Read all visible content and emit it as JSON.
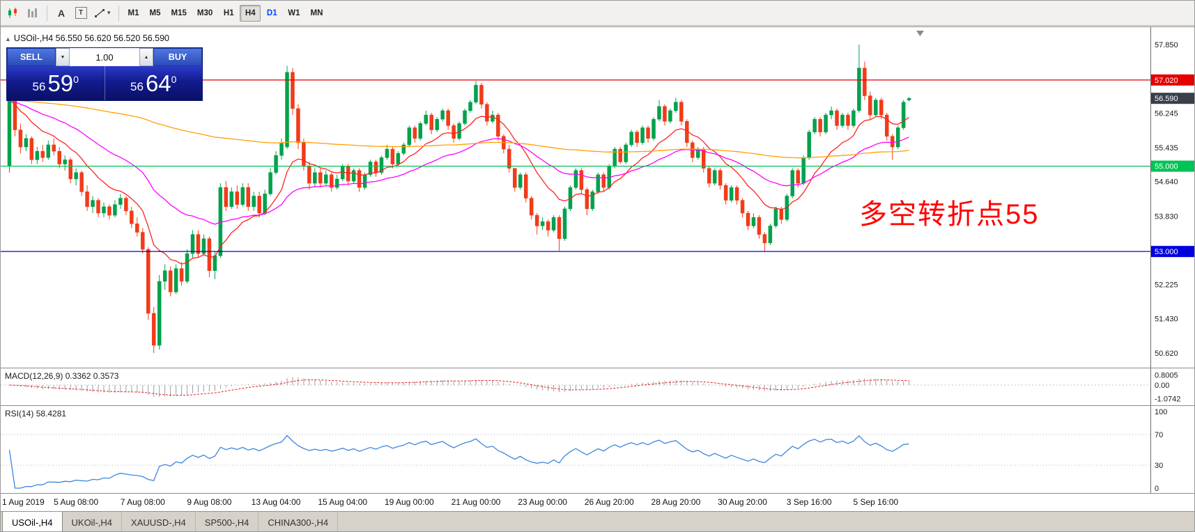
{
  "toolbar": {
    "a_icon_label": "A",
    "t_icon_label": "T",
    "timeframes": [
      "M1",
      "M5",
      "M15",
      "M30",
      "H1",
      "H4",
      "D1",
      "W1",
      "MN"
    ],
    "active_timeframe": "H4",
    "highlight_timeframe": "D1"
  },
  "chart": {
    "collapse_arrow": "▲",
    "symbol_header": "USOil-,H4  56.550 56.620 56.520 56.590",
    "annotation": {
      "text": "多空转折点55",
      "color": "#ff0000"
    },
    "one_click": {
      "sell_label": "SELL",
      "buy_label": "BUY",
      "volume": "1.00",
      "sell_small": "56",
      "sell_big": "59",
      "sell_sup": "0",
      "buy_small": "56",
      "buy_big": "64",
      "buy_sup": "0"
    }
  },
  "indicators": {
    "macd_label": "MACD(12,26,9)",
    "macd_value_main": "0.3362",
    "macd_value_signal": "0.3573",
    "rsi_label": "RSI(14)",
    "rsi_value": "58.4281"
  },
  "tabs": [
    {
      "label": "USOil-,H4",
      "active": true
    },
    {
      "label": "UKOil-,H4"
    },
    {
      "label": "XAUUSD-,H4"
    },
    {
      "label": "SP500-,H4"
    },
    {
      "label": "CHINA300-,H4"
    }
  ],
  "chart_data": {
    "type": "candlestick",
    "symbol": "USOil-,H4",
    "ohlc_readout": {
      "open": "56.550",
      "high": "56.620",
      "low": "56.520",
      "close": "56.590"
    },
    "style": {
      "bull": "#00a24c",
      "bear": "#f23b19",
      "macd_hist": "#9aa0a6",
      "macd_signal": "#e02020",
      "rsi_line": "#3d85e0"
    },
    "y_axis": {
      "labels": [
        {
          "value": 57.85,
          "label": "57.850"
        },
        {
          "value": 56.245,
          "label": "56.245"
        },
        {
          "value": 55.435,
          "label": "55.435"
        },
        {
          "value": 54.64,
          "label": "54.640"
        },
        {
          "value": 53.83,
          "label": "53.830"
        },
        {
          "value": 52.225,
          "label": "52.225"
        },
        {
          "value": 51.43,
          "label": "51.430"
        },
        {
          "value": 50.62,
          "label": "50.620"
        }
      ]
    },
    "levels": [
      {
        "value": 57.02,
        "label": "57.020",
        "color": "#e60000"
      },
      {
        "value": 55.0,
        "label": "55.000",
        "color": "#00c455"
      },
      {
        "value": 53.0,
        "label": "53.000",
        "color": "#0000dd"
      }
    ],
    "current_price": {
      "value": 56.59,
      "label": "56.590",
      "color": "#38404a"
    },
    "moving_averages": [
      {
        "period": 12,
        "color": "#ff2222"
      },
      {
        "period": 34,
        "color": "#ff00ff"
      },
      {
        "period": 200,
        "color": "#ffa000"
      }
    ],
    "macd": {
      "params": [
        12,
        26,
        9
      ],
      "axis_labels": [
        {
          "text": "0.8005",
          "value": 0.8005
        },
        {
          "text": "0.00",
          "value": 0
        },
        {
          "text": "-1.0742",
          "value": -1.0742
        }
      ]
    },
    "rsi": {
      "period": 14,
      "levels": [
        70,
        30
      ],
      "axis_labels": [
        {
          "text": "100",
          "value": 100
        },
        {
          "text": "70",
          "value": 70
        },
        {
          "text": "30",
          "value": 30
        },
        {
          "text": "0",
          "value": 0
        }
      ]
    },
    "x_axis": {
      "labels": [
        {
          "text": "1 Aug 2019",
          "index": 0
        },
        {
          "text": "5 Aug 08:00",
          "index": 12
        },
        {
          "text": "7 Aug 08:00",
          "index": 24
        },
        {
          "text": "9 Aug 08:00",
          "index": 36
        },
        {
          "text": "13 Aug 04:00",
          "index": 48
        },
        {
          "text": "15 Aug 04:00",
          "index": 60
        },
        {
          "text": "19 Aug 00:00",
          "index": 72
        },
        {
          "text": "21 Aug 00:00",
          "index": 84
        },
        {
          "text": "23 Aug 00:00",
          "index": 96
        },
        {
          "text": "26 Aug 20:00",
          "index": 108
        },
        {
          "text": "28 Aug 20:00",
          "index": 120
        },
        {
          "text": "30 Aug 20:00",
          "index": 132
        },
        {
          "text": "3 Sep 16:00",
          "index": 144
        },
        {
          "text": "5 Sep 16:00",
          "index": 156
        }
      ]
    },
    "candles": [
      [
        55.0,
        56.65,
        54.85,
        56.55
      ],
      [
        56.55,
        56.6,
        55.7,
        55.85
      ],
      [
        55.85,
        56.0,
        55.3,
        55.45
      ],
      [
        55.45,
        55.75,
        55.35,
        55.65
      ],
      [
        55.65,
        55.7,
        55.05,
        55.15
      ],
      [
        55.15,
        55.45,
        55.05,
        55.35
      ],
      [
        55.35,
        55.5,
        55.1,
        55.2
      ],
      [
        55.2,
        55.6,
        55.15,
        55.5
      ],
      [
        55.5,
        55.65,
        55.25,
        55.35
      ],
      [
        55.35,
        55.45,
        54.95,
        55.05
      ],
      [
        55.05,
        55.25,
        54.9,
        55.15
      ],
      [
        55.15,
        55.2,
        54.6,
        54.7
      ],
      [
        54.7,
        54.95,
        54.55,
        54.85
      ],
      [
        54.85,
        54.9,
        54.3,
        54.4
      ],
      [
        54.4,
        54.55,
        53.95,
        54.05
      ],
      [
        54.05,
        54.3,
        53.9,
        54.2
      ],
      [
        54.2,
        54.25,
        53.8,
        53.9
      ],
      [
        53.9,
        54.15,
        53.8,
        54.05
      ],
      [
        54.05,
        54.1,
        53.75,
        53.85
      ],
      [
        53.85,
        54.2,
        53.8,
        54.1
      ],
      [
        54.1,
        54.35,
        54.0,
        54.25
      ],
      [
        54.25,
        54.3,
        53.85,
        53.95
      ],
      [
        53.95,
        54.05,
        53.55,
        53.65
      ],
      [
        53.65,
        53.8,
        53.35,
        53.45
      ],
      [
        53.45,
        53.55,
        52.95,
        53.05
      ],
      [
        53.05,
        53.1,
        51.4,
        51.55
      ],
      [
        51.55,
        51.7,
        50.62,
        50.8
      ],
      [
        50.8,
        52.45,
        50.7,
        52.3
      ],
      [
        52.3,
        52.7,
        52.1,
        52.55
      ],
      [
        52.55,
        52.65,
        51.95,
        52.05
      ],
      [
        52.05,
        52.7,
        52.0,
        52.6
      ],
      [
        52.6,
        52.75,
        52.2,
        52.3
      ],
      [
        52.3,
        53.05,
        52.25,
        52.95
      ],
      [
        52.95,
        53.5,
        52.85,
        53.4
      ],
      [
        53.4,
        53.5,
        52.85,
        52.95
      ],
      [
        52.95,
        53.4,
        52.9,
        53.3
      ],
      [
        53.3,
        53.35,
        52.4,
        52.55
      ],
      [
        52.55,
        53.0,
        52.35,
        52.9
      ],
      [
        52.9,
        54.6,
        52.85,
        54.5
      ],
      [
        54.5,
        54.65,
        53.95,
        54.05
      ],
      [
        54.05,
        54.5,
        54.0,
        54.4
      ],
      [
        54.4,
        54.55,
        54.0,
        54.1
      ],
      [
        54.1,
        54.6,
        54.05,
        54.5
      ],
      [
        54.5,
        54.6,
        53.95,
        54.05
      ],
      [
        54.05,
        54.4,
        53.95,
        54.3
      ],
      [
        54.3,
        54.4,
        53.8,
        53.9
      ],
      [
        53.9,
        54.45,
        53.85,
        54.35
      ],
      [
        54.35,
        54.95,
        54.3,
        54.85
      ],
      [
        54.85,
        55.35,
        54.8,
        55.25
      ],
      [
        55.25,
        55.65,
        55.15,
        55.55
      ],
      [
        55.45,
        57.35,
        55.4,
        57.2
      ],
      [
        57.2,
        57.3,
        56.2,
        56.35
      ],
      [
        56.35,
        56.45,
        55.4,
        55.55
      ],
      [
        55.55,
        55.65,
        54.9,
        55.0
      ],
      [
        55.0,
        55.1,
        54.45,
        54.6
      ],
      [
        54.6,
        54.95,
        54.5,
        54.85
      ],
      [
        54.85,
        54.95,
        54.5,
        54.6
      ],
      [
        54.6,
        54.9,
        54.55,
        54.8
      ],
      [
        54.8,
        54.85,
        54.4,
        54.5
      ],
      [
        54.5,
        54.8,
        54.45,
        54.7
      ],
      [
        54.7,
        55.05,
        54.65,
        55.0
      ],
      [
        55.0,
        55.05,
        54.55,
        54.65
      ],
      [
        54.65,
        54.95,
        54.6,
        54.9
      ],
      [
        54.9,
        54.95,
        54.4,
        54.5
      ],
      [
        54.5,
        54.85,
        54.45,
        54.8
      ],
      [
        54.8,
        55.15,
        54.75,
        55.1
      ],
      [
        55.1,
        55.15,
        54.75,
        54.85
      ],
      [
        54.85,
        55.25,
        54.8,
        55.2
      ],
      [
        55.2,
        55.5,
        55.15,
        55.4
      ],
      [
        55.4,
        55.45,
        54.95,
        55.05
      ],
      [
        55.05,
        55.35,
        55.0,
        55.3
      ],
      [
        55.3,
        55.55,
        55.25,
        55.5
      ],
      [
        55.5,
        55.95,
        55.45,
        55.9
      ],
      [
        55.9,
        55.95,
        55.55,
        55.65
      ],
      [
        55.65,
        56.05,
        55.6,
        56.0
      ],
      [
        56.0,
        56.3,
        55.95,
        56.2
      ],
      [
        56.2,
        56.25,
        55.75,
        55.85
      ],
      [
        55.85,
        56.15,
        55.8,
        56.1
      ],
      [
        56.1,
        56.35,
        56.05,
        56.3
      ],
      [
        56.3,
        56.35,
        55.85,
        55.95
      ],
      [
        55.95,
        56.0,
        55.55,
        55.65
      ],
      [
        55.65,
        56.05,
        55.6,
        56.0
      ],
      [
        56.0,
        56.35,
        55.95,
        56.3
      ],
      [
        56.3,
        56.55,
        56.25,
        56.5
      ],
      [
        56.5,
        57.0,
        56.45,
        56.9
      ],
      [
        56.9,
        56.95,
        56.35,
        56.45
      ],
      [
        56.45,
        56.5,
        55.95,
        56.05
      ],
      [
        56.05,
        56.3,
        56.0,
        56.2
      ],
      [
        56.2,
        56.25,
        55.6,
        55.7
      ],
      [
        55.7,
        55.75,
        55.3,
        55.4
      ],
      [
        55.4,
        55.5,
        54.85,
        54.95
      ],
      [
        54.95,
        54.95,
        54.4,
        54.5
      ],
      [
        54.5,
        54.85,
        54.45,
        54.8
      ],
      [
        54.8,
        54.85,
        54.15,
        54.25
      ],
      [
        54.25,
        54.3,
        53.75,
        53.85
      ],
      [
        53.85,
        53.9,
        53.4,
        53.6
      ],
      [
        53.6,
        53.8,
        53.5,
        53.7
      ],
      [
        53.7,
        53.75,
        53.35,
        53.5
      ],
      [
        53.5,
        53.85,
        53.45,
        53.8
      ],
      [
        53.8,
        53.85,
        53.02,
        53.3
      ],
      [
        53.3,
        54.05,
        53.25,
        54.0
      ],
      [
        54.0,
        54.55,
        53.95,
        54.5
      ],
      [
        54.5,
        54.95,
        54.45,
        54.9
      ],
      [
        54.9,
        54.95,
        54.35,
        54.45
      ],
      [
        54.45,
        54.5,
        53.85,
        54.0
      ],
      [
        54.0,
        54.45,
        53.95,
        54.4
      ],
      [
        54.4,
        54.85,
        54.35,
        54.8
      ],
      [
        54.8,
        54.85,
        54.4,
        54.5
      ],
      [
        54.5,
        55.05,
        54.45,
        55.0
      ],
      [
        55.0,
        55.45,
        54.95,
        55.4
      ],
      [
        55.4,
        55.45,
        55.05,
        55.1
      ],
      [
        55.1,
        55.55,
        55.05,
        55.5
      ],
      [
        55.5,
        55.85,
        55.45,
        55.8
      ],
      [
        55.8,
        55.85,
        55.45,
        55.55
      ],
      [
        55.55,
        55.95,
        55.5,
        55.9
      ],
      [
        55.9,
        55.95,
        55.55,
        55.65
      ],
      [
        55.65,
        56.15,
        55.6,
        56.1
      ],
      [
        56.1,
        56.55,
        56.05,
        56.4
      ],
      [
        56.4,
        56.45,
        55.95,
        56.05
      ],
      [
        56.05,
        56.35,
        56.0,
        56.3
      ],
      [
        56.3,
        56.6,
        56.25,
        56.5
      ],
      [
        56.5,
        56.55,
        55.95,
        56.05
      ],
      [
        56.05,
        56.1,
        55.45,
        55.55
      ],
      [
        55.55,
        55.6,
        55.1,
        55.2
      ],
      [
        55.2,
        55.45,
        55.15,
        55.4
      ],
      [
        55.4,
        55.45,
        54.85,
        54.95
      ],
      [
        54.95,
        55.0,
        54.5,
        54.6
      ],
      [
        54.6,
        54.95,
        54.55,
        54.9
      ],
      [
        54.9,
        54.95,
        54.45,
        54.55
      ],
      [
        54.55,
        54.6,
        54.1,
        54.2
      ],
      [
        54.2,
        54.55,
        54.15,
        54.5
      ],
      [
        54.5,
        54.55,
        54.1,
        54.2
      ],
      [
        54.2,
        54.25,
        53.8,
        53.9
      ],
      [
        53.9,
        53.95,
        53.5,
        53.6
      ],
      [
        53.6,
        53.9,
        53.55,
        53.8
      ],
      [
        53.8,
        53.85,
        53.3,
        53.4
      ],
      [
        53.4,
        53.45,
        53.0,
        53.2
      ],
      [
        53.2,
        53.65,
        53.15,
        53.6
      ],
      [
        53.6,
        54.05,
        53.55,
        54.0
      ],
      [
        54.0,
        54.05,
        53.65,
        53.75
      ],
      [
        53.75,
        54.35,
        53.7,
        54.3
      ],
      [
        54.3,
        54.95,
        54.25,
        54.9
      ],
      [
        54.9,
        54.95,
        54.5,
        54.6
      ],
      [
        54.6,
        55.25,
        54.55,
        55.2
      ],
      [
        55.2,
        55.85,
        55.15,
        55.8
      ],
      [
        55.8,
        56.15,
        55.75,
        56.1
      ],
      [
        56.1,
        56.15,
        55.7,
        55.8
      ],
      [
        55.8,
        56.25,
        55.75,
        56.2
      ],
      [
        56.2,
        56.4,
        56.1,
        56.3
      ],
      [
        56.3,
        56.35,
        55.85,
        55.95
      ],
      [
        55.95,
        56.25,
        55.9,
        56.2
      ],
      [
        56.2,
        56.25,
        55.85,
        55.95
      ],
      [
        55.95,
        56.35,
        55.9,
        56.3
      ],
      [
        56.3,
        57.85,
        56.25,
        57.3
      ],
      [
        57.3,
        57.45,
        56.55,
        56.65
      ],
      [
        56.65,
        56.75,
        56.1,
        56.2
      ],
      [
        56.2,
        56.6,
        56.15,
        56.55
      ],
      [
        56.55,
        56.6,
        56.1,
        56.2
      ],
      [
        56.2,
        56.25,
        55.6,
        55.7
      ],
      [
        55.7,
        55.75,
        55.15,
        55.45
      ],
      [
        55.45,
        55.95,
        55.4,
        55.9
      ],
      [
        55.9,
        56.55,
        55.85,
        56.5
      ],
      [
        56.55,
        56.62,
        56.52,
        56.59
      ]
    ]
  }
}
